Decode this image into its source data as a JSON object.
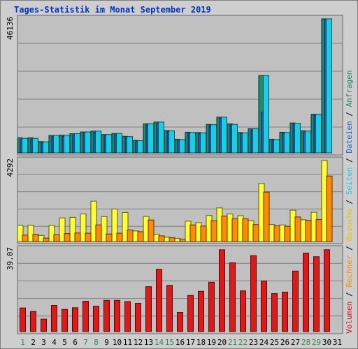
{
  "title": "Tages-Statistik im Monat September 2019",
  "colors": {
    "page_bg": "#ffffff",
    "frame_bg": "#cecece",
    "plot_bg": "#c0c0c0",
    "grid": "#808080",
    "title": "#0033cc",
    "axis_max": "#000000",
    "day_weekday": "#000000",
    "day_weekend": "#2e8b57",
    "anfragen": "#1f8a6e",
    "dateien": "#1a5fd1",
    "seiten": "#18cfe8",
    "besuche": "#ffff33",
    "rechner": "#ff8c00",
    "volumen": "#e01818"
  },
  "side_legend": [
    {
      "label": "Volumen",
      "color": "#e01818"
    },
    {
      "label": "Rechner",
      "color": "#ff8c00"
    },
    {
      "label": "Besuche",
      "color": "#e6c800"
    },
    {
      "label": "Seiten",
      "color": "#18cfe8"
    },
    {
      "label": "Dateien",
      "color": "#1a5fd1"
    },
    {
      "label": "Anfragen",
      "color": "#1f8a6e"
    }
  ],
  "separator": "/",
  "chart_data": [
    {
      "type": "bar",
      "panel": "top",
      "max_label": "46136",
      "ylim": [
        0,
        46136
      ],
      "categories": [
        "1",
        "2",
        "3",
        "4",
        "5",
        "6",
        "7",
        "8",
        "9",
        "10",
        "11",
        "12",
        "13",
        "14",
        "15",
        "16",
        "17",
        "18",
        "19",
        "20",
        "21",
        "22",
        "23",
        "24",
        "25",
        "26",
        "27",
        "28",
        "29",
        "30",
        "31"
      ],
      "weekend_days": [
        "1",
        "7",
        "8",
        "14",
        "15",
        "21",
        "22",
        "28",
        "29"
      ],
      "series": [
        {
          "name": "Anfragen",
          "color_key": "anfragen",
          "values": [
            5200,
            5200,
            3900,
            6000,
            6100,
            6600,
            7200,
            7500,
            6300,
            6700,
            5700,
            4300,
            10000,
            10600,
            7700,
            4700,
            7100,
            7000,
            9800,
            12300,
            10000,
            7000,
            8300,
            26600,
            4700,
            7100,
            10300,
            7600,
            13300,
            46136,
            0
          ]
        },
        {
          "name": "Dateien",
          "color_key": "dateien",
          "values": [
            4800,
            4800,
            3500,
            5600,
            5700,
            6200,
            6800,
            7100,
            5900,
            6300,
            5300,
            3900,
            9600,
            10200,
            7300,
            4300,
            6700,
            6600,
            9400,
            11900,
            9600,
            6600,
            7900,
            14000,
            4300,
            6700,
            9900,
            7200,
            12900,
            46000,
            0
          ]
        },
        {
          "name": "Seiten",
          "color_key": "seiten",
          "values": [
            5000,
            5000,
            3800,
            6000,
            6100,
            6600,
            7200,
            7500,
            6300,
            6700,
            5600,
            4200,
            10000,
            10600,
            7600,
            4600,
            7000,
            6900,
            9700,
            12300,
            9800,
            6900,
            8300,
            26600,
            4600,
            7000,
            10200,
            7500,
            13300,
            46136,
            0
          ]
        }
      ]
    },
    {
      "type": "bar",
      "panel": "middle",
      "max_label": "4292",
      "ylim": [
        0,
        4292
      ],
      "categories": [
        "1",
        "2",
        "3",
        "4",
        "5",
        "6",
        "7",
        "8",
        "9",
        "10",
        "11",
        "12",
        "13",
        "14",
        "15",
        "16",
        "17",
        "18",
        "19",
        "20",
        "21",
        "22",
        "23",
        "24",
        "25",
        "26",
        "27",
        "28",
        "29",
        "30",
        "31"
      ],
      "series": [
        {
          "name": "Besuche",
          "color_key": "besuche",
          "values": [
            860,
            860,
            320,
            860,
            1250,
            1280,
            1460,
            2140,
            1320,
            1720,
            1540,
            560,
            1330,
            380,
            230,
            160,
            1080,
            1000,
            1380,
            1780,
            1460,
            1370,
            1100,
            3070,
            900,
            880,
            1660,
            1150,
            1550,
            4292,
            0
          ]
        },
        {
          "name": "Rechner",
          "color_key": "rechner",
          "values": [
            340,
            380,
            180,
            360,
            420,
            450,
            440,
            880,
            400,
            440,
            610,
            520,
            1140,
            300,
            200,
            130,
            880,
            820,
            1100,
            1350,
            1200,
            1200,
            900,
            2620,
            830,
            810,
            1300,
            1120,
            1160,
            3470,
            0
          ]
        }
      ]
    },
    {
      "type": "bar",
      "panel": "bottom",
      "max_label": "39.07",
      "ylim": [
        0,
        39.07
      ],
      "categories": [
        "1",
        "2",
        "3",
        "4",
        "5",
        "6",
        "7",
        "8",
        "9",
        "10",
        "11",
        "12",
        "13",
        "14",
        "15",
        "16",
        "17",
        "18",
        "19",
        "20",
        "21",
        "22",
        "23",
        "24",
        "25",
        "26",
        "27",
        "28",
        "29",
        "30",
        "31"
      ],
      "series": [
        {
          "name": "Volumen",
          "color_key": "volumen",
          "values": [
            11.2,
            9.5,
            5.9,
            12.4,
            10.5,
            11.3,
            14.4,
            12.0,
            14.8,
            14.8,
            14.2,
            13.4,
            21.3,
            29.5,
            21.9,
            9.1,
            17.1,
            19.1,
            23.4,
            38.8,
            32.6,
            19.3,
            36.0,
            24.0,
            18.0,
            18.7,
            28.7,
            37.2,
            35.5,
            38.8,
            0
          ]
        }
      ]
    }
  ]
}
